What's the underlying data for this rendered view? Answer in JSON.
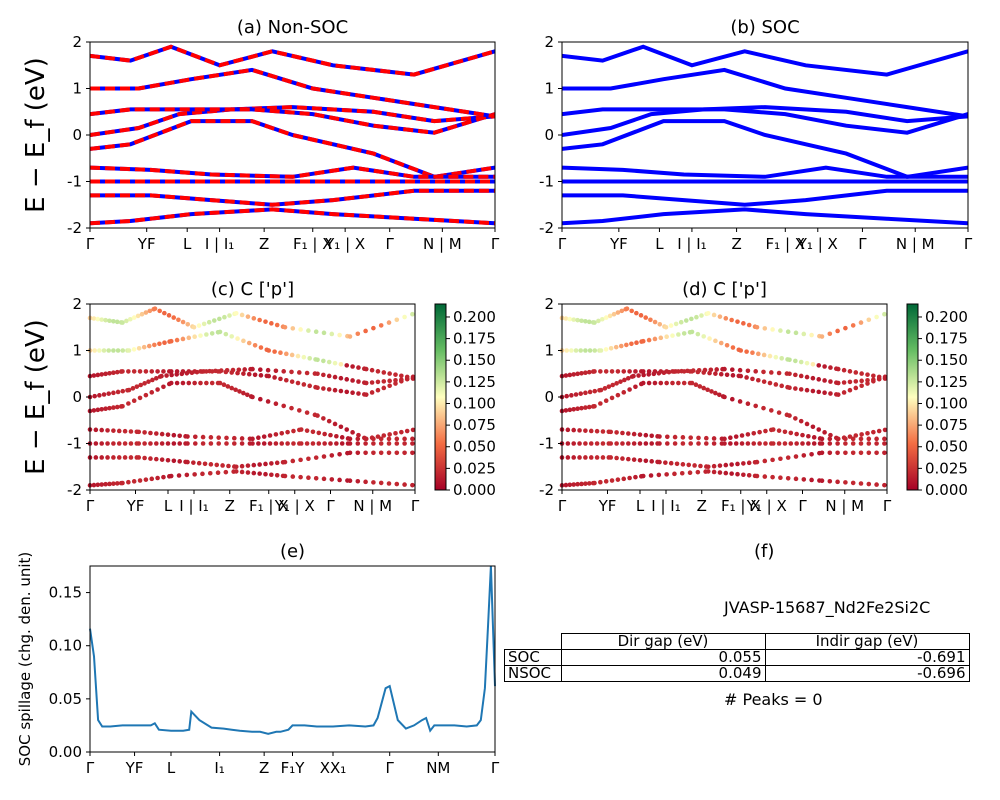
{
  "chart_data": [
    {
      "id": "a",
      "type": "line",
      "title": "(a) Non-SOC",
      "ylabel": "E − E_f (eV)",
      "ylim": [
        -2,
        2
      ],
      "yticks": [
        -2,
        -1,
        0,
        1,
        2
      ],
      "xtick_labels": [
        "Γ",
        "YF",
        "L",
        "I | I₁",
        "Z",
        "F₁ | X",
        "Y₁ | X",
        "Γ",
        "N | M",
        "Γ"
      ],
      "bands": [
        [
          [
            0,
            0
          ],
          [
            0.12,
            0.15
          ],
          [
            0.22,
            0.45
          ],
          [
            0.35,
            0.55
          ],
          [
            0.5,
            0.6
          ],
          [
            0.7,
            0.5
          ],
          [
            0.85,
            0.3
          ],
          [
            1,
            0.4
          ]
        ],
        [
          [
            0,
            0.45
          ],
          [
            0.1,
            0.55
          ],
          [
            0.25,
            0.55
          ],
          [
            0.4,
            0.55
          ],
          [
            0.55,
            0.45
          ],
          [
            0.7,
            0.2
          ],
          [
            0.85,
            0.05
          ],
          [
            1,
            0.45
          ]
        ],
        [
          [
            0,
            -0.3
          ],
          [
            0.1,
            -0.2
          ],
          [
            0.25,
            0.3
          ],
          [
            0.4,
            0.3
          ],
          [
            0.5,
            0
          ],
          [
            0.7,
            -0.4
          ],
          [
            0.85,
            -0.9
          ],
          [
            1,
            -0.7
          ]
        ],
        [
          [
            0,
            -0.7
          ],
          [
            0.15,
            -0.75
          ],
          [
            0.3,
            -0.85
          ],
          [
            0.5,
            -0.9
          ],
          [
            0.65,
            -0.7
          ],
          [
            0.8,
            -0.9
          ],
          [
            1,
            -0.9
          ]
        ],
        [
          [
            0,
            -1.0
          ],
          [
            0.15,
            -1.0
          ],
          [
            0.3,
            -1.0
          ],
          [
            0.5,
            -1.0
          ],
          [
            0.65,
            -1.0
          ],
          [
            0.8,
            -1.0
          ],
          [
            1,
            -1.0
          ]
        ],
        [
          [
            0,
            -1.3
          ],
          [
            0.15,
            -1.3
          ],
          [
            0.3,
            -1.4
          ],
          [
            0.45,
            -1.5
          ],
          [
            0.6,
            -1.4
          ],
          [
            0.8,
            -1.2
          ],
          [
            1,
            -1.2
          ]
        ],
        [
          [
            0,
            -1.9
          ],
          [
            0.1,
            -1.85
          ],
          [
            0.25,
            -1.7
          ],
          [
            0.45,
            -1.6
          ],
          [
            0.6,
            -1.7
          ],
          [
            0.8,
            -1.8
          ],
          [
            1,
            -1.9
          ]
        ],
        [
          [
            0,
            1.0
          ],
          [
            0.12,
            1.0
          ],
          [
            0.25,
            1.2
          ],
          [
            0.4,
            1.4
          ],
          [
            0.55,
            1.0
          ],
          [
            0.7,
            0.8
          ],
          [
            0.85,
            0.6
          ],
          [
            1,
            0.4
          ]
        ],
        [
          [
            0,
            1.7
          ],
          [
            0.1,
            1.6
          ],
          [
            0.2,
            1.9
          ],
          [
            0.32,
            1.5
          ],
          [
            0.45,
            1.8
          ],
          [
            0.6,
            1.5
          ],
          [
            0.8,
            1.3
          ],
          [
            1,
            1.8
          ]
        ]
      ]
    },
    {
      "id": "b",
      "type": "line",
      "title": "(b) SOC",
      "ylabel": "",
      "ylim": [
        -2,
        2
      ],
      "yticks": [
        -2,
        -1,
        0,
        1,
        2
      ],
      "xtick_labels": [
        "Γ",
        "YF",
        "L",
        "I | I₁",
        "Z",
        "F₁ | X",
        "Y₁ | X",
        "Γ",
        "N | M",
        "Γ"
      ],
      "bands": [
        [
          [
            0,
            0
          ],
          [
            0.12,
            0.15
          ],
          [
            0.22,
            0.45
          ],
          [
            0.35,
            0.55
          ],
          [
            0.5,
            0.6
          ],
          [
            0.7,
            0.5
          ],
          [
            0.85,
            0.3
          ],
          [
            1,
            0.4
          ]
        ],
        [
          [
            0,
            0.45
          ],
          [
            0.1,
            0.55
          ],
          [
            0.25,
            0.55
          ],
          [
            0.4,
            0.55
          ],
          [
            0.55,
            0.45
          ],
          [
            0.7,
            0.2
          ],
          [
            0.85,
            0.05
          ],
          [
            1,
            0.45
          ]
        ],
        [
          [
            0,
            -0.3
          ],
          [
            0.1,
            -0.2
          ],
          [
            0.25,
            0.3
          ],
          [
            0.4,
            0.3
          ],
          [
            0.5,
            0
          ],
          [
            0.7,
            -0.4
          ],
          [
            0.85,
            -0.9
          ],
          [
            1,
            -0.7
          ]
        ],
        [
          [
            0,
            -0.7
          ],
          [
            0.15,
            -0.75
          ],
          [
            0.3,
            -0.85
          ],
          [
            0.5,
            -0.9
          ],
          [
            0.65,
            -0.7
          ],
          [
            0.8,
            -0.9
          ],
          [
            1,
            -0.9
          ]
        ],
        [
          [
            0,
            -1.0
          ],
          [
            0.15,
            -1.0
          ],
          [
            0.3,
            -1.0
          ],
          [
            0.5,
            -1.0
          ],
          [
            0.65,
            -1.0
          ],
          [
            0.8,
            -1.0
          ],
          [
            1,
            -1.0
          ]
        ],
        [
          [
            0,
            -1.3
          ],
          [
            0.15,
            -1.3
          ],
          [
            0.3,
            -1.4
          ],
          [
            0.45,
            -1.5
          ],
          [
            0.6,
            -1.4
          ],
          [
            0.8,
            -1.2
          ],
          [
            1,
            -1.2
          ]
        ],
        [
          [
            0,
            -1.9
          ],
          [
            0.1,
            -1.85
          ],
          [
            0.25,
            -1.7
          ],
          [
            0.45,
            -1.6
          ],
          [
            0.6,
            -1.7
          ],
          [
            0.8,
            -1.8
          ],
          [
            1,
            -1.9
          ]
        ],
        [
          [
            0,
            1.0
          ],
          [
            0.12,
            1.0
          ],
          [
            0.25,
            1.2
          ],
          [
            0.4,
            1.4
          ],
          [
            0.55,
            1.0
          ],
          [
            0.7,
            0.8
          ],
          [
            0.85,
            0.6
          ],
          [
            1,
            0.4
          ]
        ],
        [
          [
            0,
            1.7
          ],
          [
            0.1,
            1.6
          ],
          [
            0.2,
            1.9
          ],
          [
            0.32,
            1.5
          ],
          [
            0.45,
            1.8
          ],
          [
            0.6,
            1.5
          ],
          [
            0.8,
            1.3
          ],
          [
            1,
            1.8
          ]
        ]
      ]
    },
    {
      "id": "c",
      "type": "scatter",
      "title": "(c)  C ['p']",
      "ylabel": "E − E_f (eV)",
      "ylim": [
        -2,
        2
      ],
      "yticks": [
        -2,
        -1,
        0,
        1,
        2
      ],
      "xtick_labels": [
        "Γ",
        "YF",
        "L",
        "I | I₁",
        "Z",
        "F₁ | X",
        "Y₁ | X",
        "Γ",
        "N | M",
        "Γ"
      ],
      "colorbar_ticks": [
        "0.000",
        "0.025",
        "0.050",
        "0.075",
        "0.100",
        "0.125",
        "0.150",
        "0.175",
        "0.200"
      ],
      "colorbar_range": [
        0,
        0.215
      ]
    },
    {
      "id": "d",
      "type": "scatter",
      "title": "(d) C ['p']",
      "ylabel": "",
      "ylim": [
        -2,
        2
      ],
      "yticks": [
        -2,
        -1,
        0,
        1,
        2
      ],
      "xtick_labels": [
        "Γ",
        "YF",
        "L",
        "I | I₁",
        "Z",
        "F₁ | X",
        "Y₁ | X",
        "Γ",
        "N | M",
        "Γ"
      ],
      "colorbar_ticks": [
        "0.000",
        "0.025",
        "0.050",
        "0.075",
        "0.100",
        "0.125",
        "0.150",
        "0.175",
        "0.200"
      ],
      "colorbar_range": [
        0,
        0.215
      ]
    },
    {
      "id": "e",
      "type": "line",
      "title": "(e)",
      "ylabel": "SOC spillage (chg. den. unit)",
      "ylim": [
        0,
        0.175
      ],
      "yticks": [
        "0.00",
        "0.05",
        "0.10",
        "0.15"
      ],
      "xtick_labels": [
        "Γ",
        "YF",
        "L",
        "I₁",
        "Z",
        "F₁Y",
        "XX₁",
        "Γ",
        "NM",
        "Γ"
      ],
      "x": [
        0,
        0.01,
        0.02,
        0.03,
        0.05,
        0.08,
        0.12,
        0.15,
        0.16,
        0.17,
        0.2,
        0.23,
        0.245,
        0.25,
        0.27,
        0.3,
        0.33,
        0.35,
        0.37,
        0.4,
        0.42,
        0.44,
        0.46,
        0.47,
        0.49,
        0.5,
        0.53,
        0.56,
        0.6,
        0.64,
        0.68,
        0.7,
        0.71,
        0.73,
        0.74,
        0.76,
        0.78,
        0.8,
        0.82,
        0.83,
        0.84,
        0.85,
        0.87,
        0.9,
        0.93,
        0.955,
        0.965,
        0.975,
        0.983,
        0.99,
        1.0
      ],
      "y": [
        0.116,
        0.09,
        0.03,
        0.024,
        0.024,
        0.025,
        0.025,
        0.025,
        0.027,
        0.021,
        0.02,
        0.02,
        0.021,
        0.038,
        0.03,
        0.023,
        0.022,
        0.021,
        0.02,
        0.019,
        0.019,
        0.017,
        0.019,
        0.019,
        0.021,
        0.025,
        0.025,
        0.024,
        0.024,
        0.025,
        0.024,
        0.025,
        0.032,
        0.06,
        0.062,
        0.03,
        0.022,
        0.025,
        0.03,
        0.032,
        0.02,
        0.025,
        0.025,
        0.025,
        0.024,
        0.025,
        0.03,
        0.06,
        0.12,
        0.175,
        0.062
      ]
    }
  ],
  "panel_f": {
    "title": "(f)",
    "name": "JVASP-15687_Nd2Fe2Si2C",
    "table": {
      "headers": [
        "Dir gap (eV)",
        "Indir gap (eV)"
      ],
      "rows": [
        {
          "label": "SOC",
          "dir": "0.055",
          "indir": "-0.691"
        },
        {
          "label": "NSOC",
          "dir": "0.049",
          "indir": "-0.696"
        }
      ]
    },
    "peaks": "# Peaks = 0"
  },
  "colors": {
    "soc": "#0000ff",
    "nsoc": "#ff0000",
    "spillage": "#1f77b4"
  }
}
